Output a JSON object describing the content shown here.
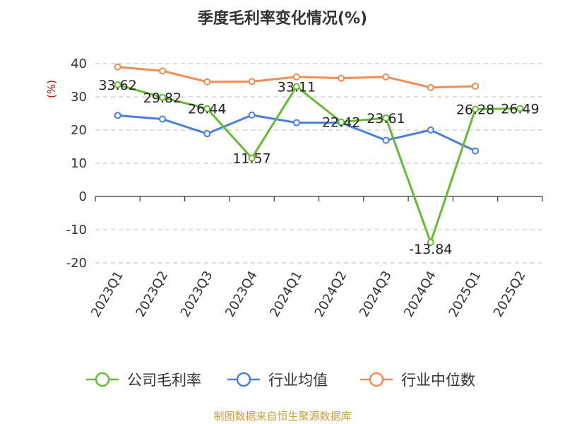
{
  "chart_data": {
    "type": "line",
    "title": "季度毛利率变化情况(%)",
    "ylabel": "(%)",
    "ylim": [
      -20,
      40
    ],
    "yticks": [
      40,
      30,
      20,
      10,
      0,
      -10,
      -20
    ],
    "grid": true,
    "legend_position": "bottom",
    "categories": [
      "2023Q1",
      "2023Q2",
      "2023Q3",
      "2023Q4",
      "2024Q1",
      "2024Q2",
      "2024Q3",
      "2024Q4",
      "2025Q1",
      "2025Q2"
    ],
    "series": [
      {
        "name": "公司毛利率",
        "color": "#66bb33",
        "values": [
          33.62,
          29.82,
          26.44,
          11.57,
          33.11,
          22.42,
          23.61,
          -13.84,
          26.28,
          26.49
        ],
        "labels": [
          "33.62",
          "29.82",
          "26.44",
          "11.57",
          "33.11",
          "22.42",
          "23.61",
          "-13.84",
          "26.28",
          "26.49"
        ]
      },
      {
        "name": "行业均值",
        "color": "#4a7fdc",
        "values": [
          24.4,
          23.3,
          18.9,
          24.5,
          22.2,
          22.2,
          16.9,
          20.0,
          13.7,
          null
        ]
      },
      {
        "name": "行业中位数",
        "color": "#f08c55",
        "values": [
          39.0,
          37.8,
          34.5,
          34.6,
          36.0,
          35.6,
          36.0,
          32.8,
          33.2,
          null
        ]
      }
    ]
  },
  "source": "制图数据来自恒生聚源数据库"
}
